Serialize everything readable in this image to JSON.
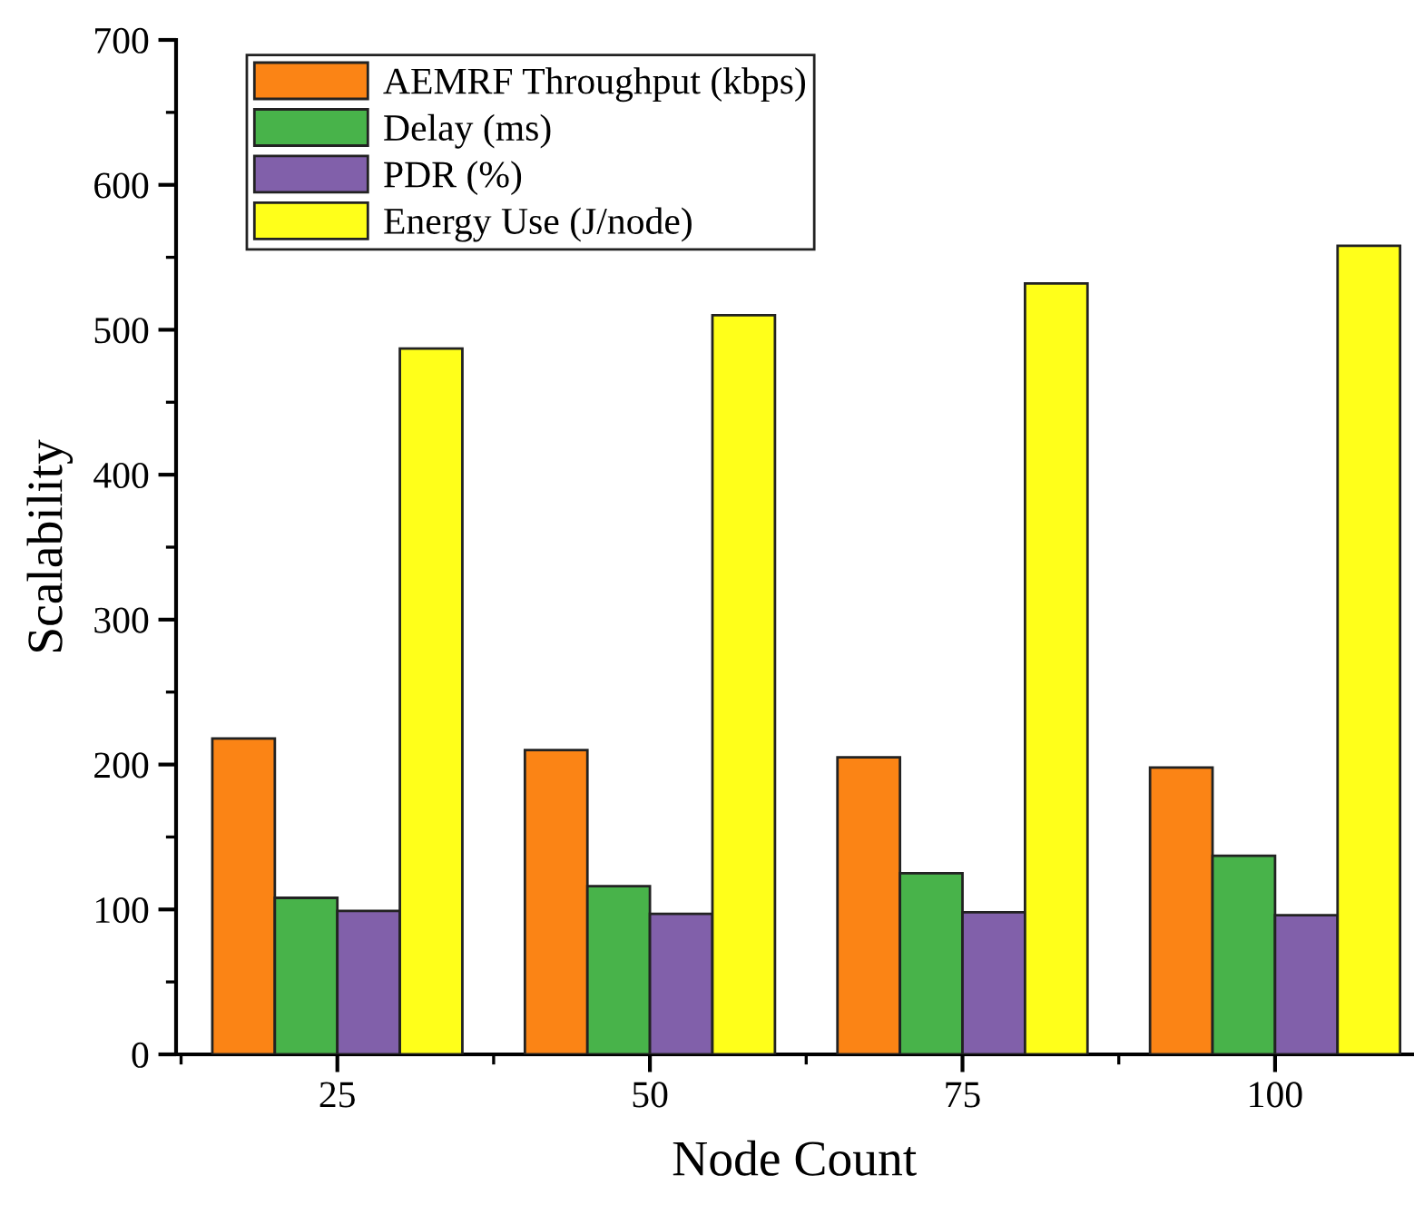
{
  "chart_data": {
    "type": "bar",
    "xlabel": "Node Count",
    "ylabel": "Scalability",
    "categories": [
      "25",
      "50",
      "75",
      "100"
    ],
    "series": [
      {
        "name": "AEMRF Throughput (kbps)",
        "color": "#fb8415",
        "values": [
          218,
          210,
          205,
          198
        ]
      },
      {
        "name": "Delay (ms)",
        "color": "#48b34a",
        "values": [
          108,
          116,
          125,
          137
        ]
      },
      {
        "name": "PDR (%)",
        "color": "#8160aa",
        "values": [
          99,
          97,
          98,
          96
        ]
      },
      {
        "name": "Energy Use (J/node)",
        "color": "#ffff1a",
        "values": [
          487,
          510,
          532,
          558
        ]
      }
    ],
    "ylim": [
      0,
      700
    ],
    "yticks": [
      0,
      100,
      200,
      300,
      400,
      500,
      600,
      700
    ],
    "grid": false,
    "legend": "top left"
  }
}
